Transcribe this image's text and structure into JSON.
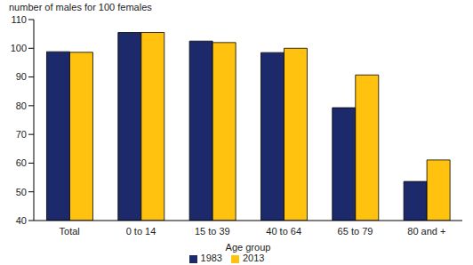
{
  "chart_data": {
    "type": "bar",
    "y_label": "number of males for 100 females",
    "x_label": "Age group",
    "categories": [
      "Total",
      "0 to 14",
      "15 to 39",
      "40 to 64",
      "65 to 79",
      "80 and +"
    ],
    "series": [
      {
        "name": "1983",
        "color": "#1c2a6b",
        "values": [
          98.8,
          105.5,
          102.5,
          98.5,
          79.3,
          53.6
        ]
      },
      {
        "name": "2013",
        "color": "#ffc20e",
        "values": [
          98.6,
          105.5,
          102.0,
          100.0,
          90.7,
          61.1
        ]
      }
    ],
    "ylim": [
      40,
      110
    ],
    "yticks": [
      40,
      50,
      60,
      70,
      80,
      90,
      100,
      110
    ],
    "grid": false,
    "legend": "bottom"
  }
}
